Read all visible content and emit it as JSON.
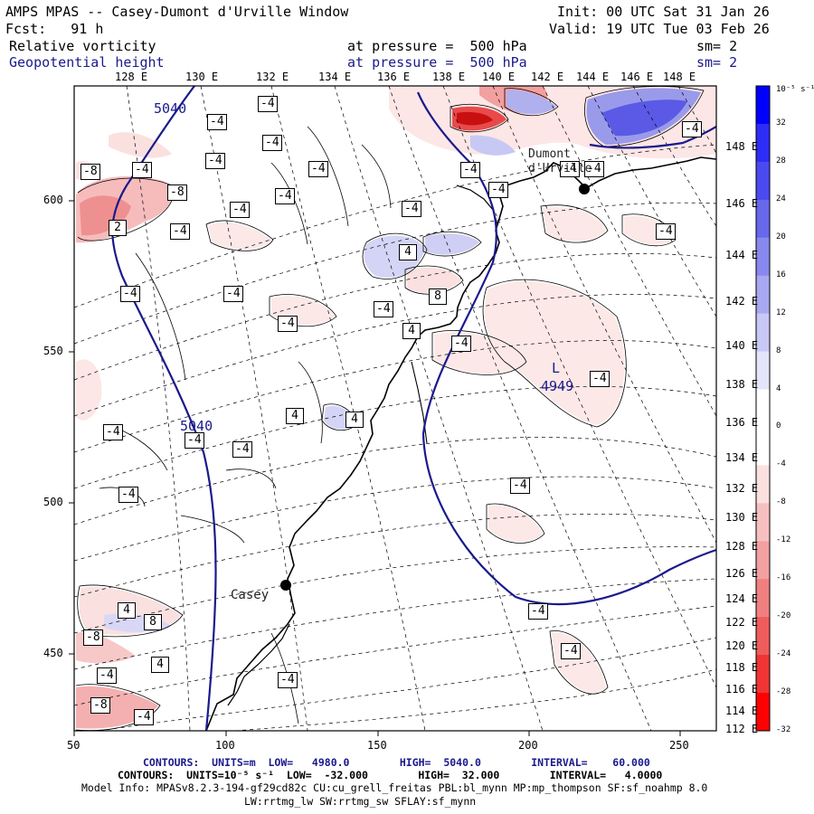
{
  "header": {
    "title": "AMPS MPAS -- Casey-Dumont d'Urville Window",
    "init": "Init: 00 UTC Sat 31 Jan 26",
    "fcst": "Fcst:   91 h",
    "valid": "Valid: 19 UTC Tue 03 Feb 26",
    "field1": "Relative vorticity",
    "field1_level": "at pressure =  500 hPa",
    "field1_sm": "sm= 2",
    "field2": "Geopotential height",
    "field2_level": "at pressure =  500 hPa",
    "field2_sm": "sm= 2"
  },
  "top_lon_labels": [
    "128 E",
    "130 E",
    "132 E",
    "134 E",
    "136 E",
    "138 E",
    "140 E",
    "142 E",
    "144 E",
    "146 E",
    "148 E"
  ],
  "right_lat_labels": [
    "148 E",
    "146 E",
    "144 E",
    "142 E",
    "140 E",
    "138 E",
    "136 E",
    "134 E",
    "132 E",
    "130 E",
    "128 E",
    "126 E",
    "124 E",
    "122 E",
    "120 E",
    "118 E",
    "116 E",
    "114 E",
    "112 E"
  ],
  "x_axis_ticks": [
    "50",
    "100",
    "150",
    "200",
    "250"
  ],
  "y_axis_ticks": [
    "600",
    "550",
    "500",
    "450"
  ],
  "stations": [
    {
      "name": "Casey"
    },
    {
      "name": "Dumont d'Urville"
    }
  ],
  "height_labels": [
    "5040",
    "5040",
    "4949"
  ],
  "low_marker": "L",
  "vort_labels": [
    "-4",
    "-8",
    "2",
    "4",
    "8"
  ],
  "colorbar": {
    "unit": "10⁻⁵ s⁻¹",
    "labels": [
      "32",
      "28",
      "24",
      "20",
      "16",
      "12",
      "8",
      "4",
      "0",
      "-4",
      "-8",
      "-12",
      "-16",
      "-20",
      "-24",
      "-28",
      "-32"
    ],
    "colors": [
      "#0000ff",
      "#2d2df7",
      "#4a4af0",
      "#6868ec",
      "#8888ee",
      "#a8a8f2",
      "#c8c8f6",
      "#e4e4fb",
      "#ffffff",
      "#ffffff",
      "#fbe0e0",
      "#f7c0c0",
      "#f3a0a0",
      "#f08080",
      "#ef5c5c",
      "#f03434",
      "#ff0000"
    ]
  },
  "footer": {
    "line1_label": "CONTOURS:  UNITS=m  LOW=   4980.0        HIGH=  5040.0        INTERVAL=    60.000",
    "line2_label": "CONTOURS:  UNITS=10⁻⁵ s⁻¹  LOW=  -32.000        HIGH=  32.000        INTERVAL=   4.0000",
    "line3": "Model Info: MPASv8.2.3-194-gf29cd82c CU:cu_grell_freitas PBL:bl_mynn MP:mp_thompson SF:sf_noahmp 8.0",
    "line4": "LW:rrtmg_lw SW:rrtmg_sw SFLAY:sf_mynn"
  }
}
